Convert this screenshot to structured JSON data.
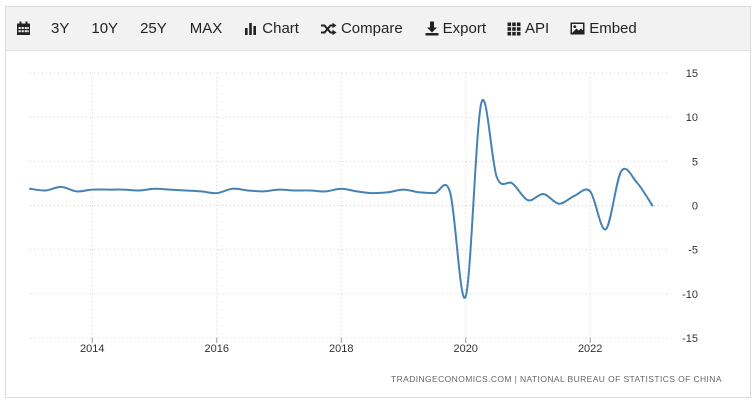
{
  "toolbar": {
    "items": [
      {
        "label": "",
        "icon": "calendar-icon"
      },
      {
        "label": "3Y"
      },
      {
        "label": "10Y"
      },
      {
        "label": "25Y"
      },
      {
        "label": "MAX"
      },
      {
        "label": "Chart",
        "icon": "bar-chart-icon"
      },
      {
        "label": "Compare",
        "icon": "shuffle-icon"
      },
      {
        "label": "Export",
        "icon": "download-icon"
      },
      {
        "label": "API",
        "icon": "grid-icon"
      },
      {
        "label": "Embed",
        "icon": "image-icon"
      }
    ]
  },
  "source_text": "TRADINGECONOMICS.COM  |  NATIONAL BUREAU OF STATISTICS OF CHINA",
  "colors": {
    "line": "#4682b4",
    "grid": "#d0d0d0",
    "toolbar_bg": "#f2f2f2"
  },
  "chart_data": {
    "type": "line",
    "title": "",
    "xlabel": "",
    "ylabel": "",
    "x_ticks": [
      "2014",
      "2016",
      "2018",
      "2020",
      "2022"
    ],
    "y_ticks": [
      "15",
      "10",
      "5",
      "0",
      "-5",
      "-10",
      "-15"
    ],
    "ylim": [
      -15,
      15
    ],
    "xlim": [
      2013.0,
      2023.25
    ],
    "grid": true,
    "series": [
      {
        "name": "",
        "x": [
          2013.0,
          2013.25,
          2013.5,
          2013.75,
          2014.0,
          2014.25,
          2014.5,
          2014.75,
          2015.0,
          2015.25,
          2015.5,
          2015.75,
          2016.0,
          2016.25,
          2016.5,
          2016.75,
          2017.0,
          2017.25,
          2017.5,
          2017.75,
          2018.0,
          2018.25,
          2018.5,
          2018.75,
          2019.0,
          2019.25,
          2019.5,
          2019.75,
          2020.0,
          2020.25,
          2020.5,
          2020.75,
          2021.0,
          2021.25,
          2021.5,
          2021.75,
          2022.0,
          2022.25,
          2022.5,
          2022.75,
          2023.0
        ],
        "y": [
          1.9,
          1.7,
          2.1,
          1.6,
          1.8,
          1.8,
          1.8,
          1.7,
          1.9,
          1.8,
          1.7,
          1.6,
          1.4,
          1.9,
          1.7,
          1.6,
          1.8,
          1.7,
          1.7,
          1.6,
          1.9,
          1.6,
          1.4,
          1.5,
          1.8,
          1.5,
          1.4,
          1.5,
          -10.3,
          11.6,
          3.2,
          2.5,
          0.6,
          1.3,
          0.2,
          1.1,
          1.6,
          -2.7,
          3.9,
          2.6,
          0.0
        ]
      }
    ]
  }
}
